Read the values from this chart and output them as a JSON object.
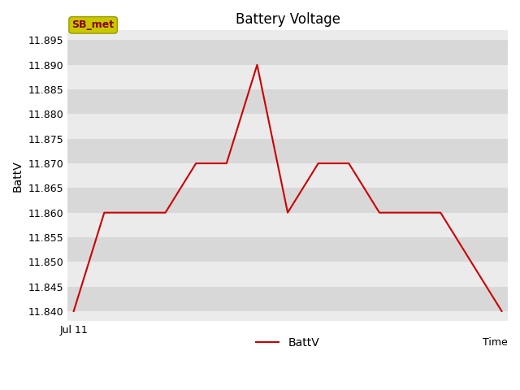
{
  "title": "Battery Voltage",
  "ylabel": "BattV",
  "line_color": "#cc0000",
  "line_width": 1.5,
  "x_values": [
    0,
    1,
    2,
    3,
    4,
    5,
    6,
    7,
    8,
    9,
    10,
    11,
    12,
    13,
    14
  ],
  "y_values": [
    11.84,
    11.86,
    11.86,
    11.86,
    11.87,
    11.87,
    11.89,
    11.86,
    11.87,
    11.87,
    11.86,
    11.86,
    11.86,
    11.85,
    11.84
  ],
  "ylim": [
    11.838,
    11.897
  ],
  "xlim": [
    -0.2,
    14.2
  ],
  "yticks": [
    11.84,
    11.845,
    11.85,
    11.855,
    11.86,
    11.865,
    11.87,
    11.875,
    11.88,
    11.885,
    11.89,
    11.895
  ],
  "x_right_label": "Time",
  "bg_color": "#ebebeb",
  "fig_bg_color": "#ffffff",
  "band_color_dark": "#d8d8d8",
  "band_color_light": "#ebebeb",
  "legend_label": "BattV",
  "annotation_text": "SB_met",
  "annotation_bg": "#c8c800",
  "annotation_fg": "#8b0000",
  "title_fontsize": 12,
  "axis_label_fontsize": 10,
  "tick_fontsize": 9,
  "legend_fontsize": 10
}
